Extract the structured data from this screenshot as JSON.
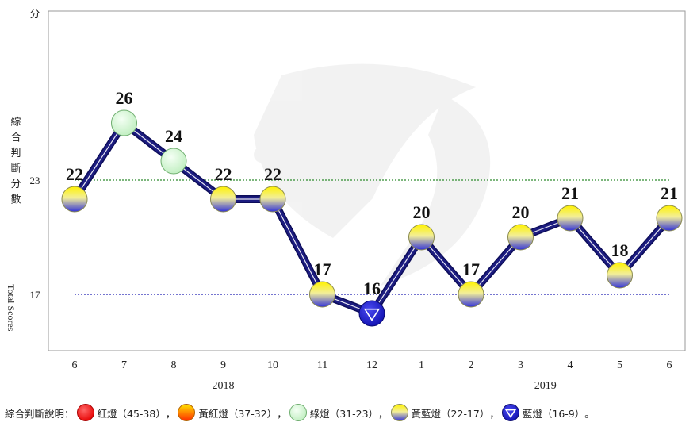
{
  "chart_data": {
    "type": "line",
    "y_unit": "分",
    "ylabel_zh": "綜合判斷分數",
    "ylabel_en": "Total Scores",
    "ylim": [
      11,
      30
    ],
    "yticks": [
      17,
      23
    ],
    "thresholds": [
      {
        "value": 23,
        "color": "#2e8b2e"
      },
      {
        "value": 17,
        "color": "#2323b4"
      }
    ],
    "categories": [
      "6",
      "7",
      "8",
      "9",
      "10",
      "11",
      "12",
      "1",
      "2",
      "3",
      "4",
      "5",
      "6"
    ],
    "year_labels": [
      {
        "text": "2018",
        "center_index": 3
      },
      {
        "text": "2019",
        "center_index": 9.5
      }
    ],
    "series": [
      {
        "values": [
          22,
          26,
          24,
          22,
          22,
          17,
          16,
          20,
          17,
          20,
          21,
          18,
          21
        ],
        "signals": [
          "yellow-blue",
          "green",
          "green",
          "yellow-blue",
          "yellow-blue",
          "yellow-blue",
          "blue",
          "yellow-blue",
          "yellow-blue",
          "yellow-blue",
          "yellow-blue",
          "yellow-blue",
          "yellow-blue"
        ],
        "color": "#1c1c80"
      }
    ],
    "grid": false
  },
  "legend": {
    "title": "綜合判斷說明：",
    "items": [
      {
        "signal": "red",
        "text": "紅燈（45-38）",
        "sep": "，"
      },
      {
        "signal": "yellow-red",
        "text": "黃紅燈（37-32）",
        "sep": "，"
      },
      {
        "signal": "green",
        "text": "綠燈（31-23）",
        "sep": "，"
      },
      {
        "signal": "yellow-blue",
        "text": "黃藍燈（22-17）",
        "sep": "，"
      },
      {
        "signal": "blue",
        "text": "藍燈（16-9）",
        "sep": "。"
      }
    ]
  },
  "colors": {
    "line": "#1c1c80",
    "red": "#ff1a1a",
    "green": "#d4f5d4",
    "yellow": "#fff200",
    "blue": "#3a3ae0",
    "frame": "#9a9a9a"
  }
}
